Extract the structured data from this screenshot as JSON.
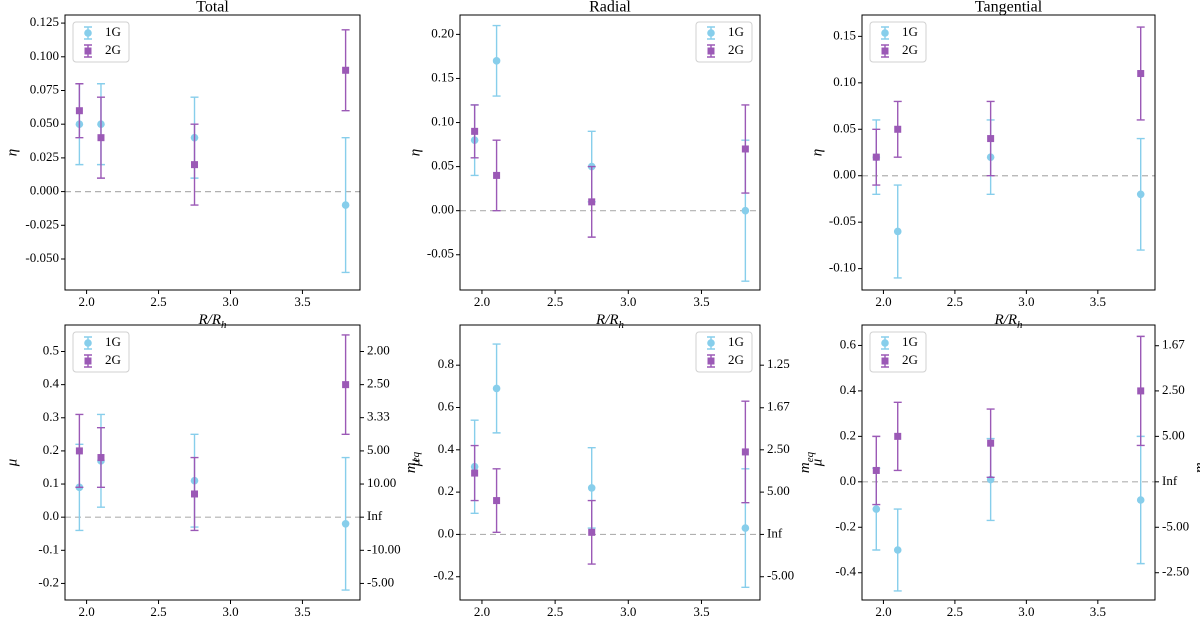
{
  "chart_data": [
    {
      "type": "errorbar",
      "title": "Total",
      "xlabel": "R/R",
      "xlabel_sub": "h",
      "ylabel": "η",
      "x": [
        1.95,
        2.1,
        2.75,
        3.8
      ],
      "xlim": [
        1.85,
        3.9
      ],
      "xticks": [
        {
          "value": 2,
          "label": "2.0"
        },
        2.5,
        {
          "value": 3,
          "label": "3.0"
        },
        3.5
      ],
      "ylim": [
        -0.073,
        0.131
      ],
      "yticks": [
        {
          "value": -0.05,
          "label": "-0.050"
        },
        {
          "value": -0.025,
          "label": "-0.025"
        },
        {
          "value": 0,
          "label": "0.000"
        },
        0.025,
        {
          "value": 0.05,
          "label": "0.050"
        },
        0.075,
        {
          "value": 0.1,
          "label": "0.100"
        },
        0.125
      ],
      "hline": 0,
      "legend": "upper left",
      "series": [
        {
          "name": "1G",
          "color": "#87ceeb",
          "marker": "circle",
          "values": [
            0.05,
            0.05,
            0.04,
            -0.01
          ],
          "errors": [
            0.03,
            0.03,
            0.03,
            0.05
          ]
        },
        {
          "name": "2G",
          "color": "#9b59b6",
          "marker": "square",
          "values": [
            0.06,
            0.04,
            0.02,
            0.09
          ],
          "errors": [
            0.02,
            0.03,
            0.03,
            0.03
          ]
        }
      ]
    },
    {
      "type": "errorbar",
      "title": "Radial",
      "xlabel": "R/R",
      "xlabel_sub": "h",
      "ylabel": "η",
      "x": [
        1.95,
        2.1,
        2.75,
        3.8
      ],
      "xlim": [
        1.85,
        3.9
      ],
      "xticks": [
        {
          "value": 2,
          "label": "2.0"
        },
        2.5,
        {
          "value": 3,
          "label": "3.0"
        },
        3.5
      ],
      "ylim": [
        -0.09,
        0.222
      ],
      "yticks": [
        -0.05,
        {
          "value": 0,
          "label": "0.00"
        },
        0.05,
        {
          "value": 0.1,
          "label": "0.10"
        },
        0.15,
        {
          "value": 0.2,
          "label": "0.20"
        }
      ],
      "hline": 0,
      "legend": "upper right",
      "series": [
        {
          "name": "1G",
          "color": "#87ceeb",
          "marker": "circle",
          "values": [
            0.08,
            0.17,
            0.05,
            0.0
          ],
          "errors": [
            0.04,
            0.04,
            0.04,
            0.08
          ]
        },
        {
          "name": "2G",
          "color": "#9b59b6",
          "marker": "square",
          "values": [
            0.09,
            0.04,
            0.01,
            0.07
          ],
          "errors": [
            0.03,
            0.04,
            0.04,
            0.05
          ]
        }
      ]
    },
    {
      "type": "errorbar",
      "title": "Tangential",
      "xlabel": "R/R",
      "xlabel_sub": "h",
      "ylabel": "η",
      "x": [
        1.95,
        2.1,
        2.75,
        3.8
      ],
      "xlim": [
        1.85,
        3.9
      ],
      "xticks": [
        {
          "value": 2,
          "label": "2.0"
        },
        2.5,
        {
          "value": 3,
          "label": "3.0"
        },
        3.5
      ],
      "ylim": [
        -0.123,
        0.173
      ],
      "yticks": [
        {
          "value": -0.1,
          "label": "-0.10"
        },
        -0.05,
        {
          "value": 0,
          "label": "0.00"
        },
        0.05,
        {
          "value": 0.1,
          "label": "0.10"
        },
        0.15
      ],
      "hline": 0,
      "legend": "upper left",
      "series": [
        {
          "name": "1G",
          "color": "#87ceeb",
          "marker": "circle",
          "values": [
            0.02,
            -0.06,
            0.02,
            -0.02
          ],
          "errors": [
            0.04,
            0.05,
            0.04,
            0.06
          ]
        },
        {
          "name": "2G",
          "color": "#9b59b6",
          "marker": "square",
          "values": [
            0.02,
            0.05,
            0.04,
            0.11
          ],
          "errors": [
            0.03,
            0.03,
            0.04,
            0.05
          ]
        }
      ]
    },
    {
      "type": "errorbar",
      "xlabel": "R/R",
      "xlabel_sub": "h",
      "ylabel": "μ",
      "y2label": "m",
      "y2label_sub": "eq",
      "x": [
        1.95,
        2.1,
        2.75,
        3.8
      ],
      "xlim": [
        1.85,
        3.9
      ],
      "xticks": [
        {
          "value": 2,
          "label": "2.0"
        },
        2.5,
        {
          "value": 3,
          "label": "3.0"
        },
        3.5
      ],
      "ylim": [
        -0.25,
        0.58
      ],
      "yticks": [
        -0.2,
        -0.1,
        {
          "value": 0,
          "label": "0.0"
        },
        0.1,
        0.2,
        0.3,
        0.4,
        0.5
      ],
      "y2_scale": "reciprocal",
      "y2ticks": [
        {
          "value": 2,
          "label": "2.00"
        },
        {
          "value": 2.5,
          "label": "2.50"
        },
        3.33,
        {
          "value": 5,
          "label": "5.00"
        },
        {
          "value": 10,
          "label": "10.00"
        },
        {
          "value": null,
          "label": "Inf"
        },
        {
          "value": -10,
          "label": "-10.00"
        },
        {
          "value": -5,
          "label": "-5.00"
        }
      ],
      "hline": 0,
      "legend": "upper left",
      "series": [
        {
          "name": "1G",
          "color": "#87ceeb",
          "marker": "circle",
          "values": [
            0.09,
            0.17,
            0.11,
            -0.02
          ],
          "errors": [
            0.13,
            0.14,
            0.14,
            0.2
          ]
        },
        {
          "name": "2G",
          "color": "#9b59b6",
          "marker": "square",
          "values": [
            0.2,
            0.18,
            0.07,
            0.4
          ],
          "errors": [
            0.11,
            0.09,
            0.11,
            0.15
          ]
        }
      ]
    },
    {
      "type": "errorbar",
      "xlabel": "R/R",
      "xlabel_sub": "h",
      "ylabel": "μ",
      "y2label": "m",
      "y2label_sub": "eq",
      "x": [
        1.95,
        2.1,
        2.75,
        3.8
      ],
      "xlim": [
        1.85,
        3.9
      ],
      "xticks": [
        {
          "value": 2,
          "label": "2.0"
        },
        2.5,
        {
          "value": 3,
          "label": "3.0"
        },
        3.5
      ],
      "ylim": [
        -0.31,
        0.99
      ],
      "yticks": [
        -0.2,
        {
          "value": 0,
          "label": "0.0"
        },
        0.2,
        0.4,
        0.6,
        0.8
      ],
      "y2_scale": "reciprocal",
      "y2ticks": [
        1.25,
        1.67,
        {
          "value": 2.5,
          "label": "2.50"
        },
        {
          "value": 5,
          "label": "5.00"
        },
        {
          "value": null,
          "label": "Inf"
        },
        {
          "value": -5,
          "label": "-5.00"
        }
      ],
      "hline": 0,
      "legend": "upper right",
      "series": [
        {
          "name": "1G",
          "color": "#87ceeb",
          "marker": "circle",
          "values": [
            0.32,
            0.69,
            0.22,
            0.03
          ],
          "errors": [
            0.22,
            0.21,
            0.19,
            0.28
          ]
        },
        {
          "name": "2G",
          "color": "#9b59b6",
          "marker": "square",
          "values": [
            0.29,
            0.16,
            0.01,
            0.39
          ],
          "errors": [
            0.13,
            0.15,
            0.15,
            0.24
          ]
        }
      ]
    },
    {
      "type": "errorbar",
      "xlabel": "R/R",
      "xlabel_sub": "h",
      "ylabel": "μ",
      "y2label": "m",
      "y2label_sub": "eq",
      "x": [
        1.95,
        2.1,
        2.75,
        3.8
      ],
      "xlim": [
        1.85,
        3.9
      ],
      "xticks": [
        {
          "value": 2,
          "label": "2.0"
        },
        2.5,
        {
          "value": 3,
          "label": "3.0"
        },
        3.5
      ],
      "ylim": [
        -0.52,
        0.69
      ],
      "yticks": [
        -0.4,
        -0.2,
        {
          "value": 0,
          "label": "0.0"
        },
        0.2,
        0.4,
        0.6
      ],
      "y2_scale": "reciprocal",
      "y2ticks": [
        1.67,
        {
          "value": 2.5,
          "label": "2.50"
        },
        {
          "value": 5,
          "label": "5.00"
        },
        {
          "value": null,
          "label": "Inf"
        },
        {
          "value": -5,
          "label": "-5.00"
        },
        {
          "value": -2.5,
          "label": "-2.50"
        }
      ],
      "hline": 0,
      "legend": "upper left",
      "series": [
        {
          "name": "1G",
          "color": "#87ceeb",
          "marker": "circle",
          "values": [
            -0.12,
            -0.3,
            0.01,
            -0.08
          ],
          "errors": [
            0.18,
            0.18,
            0.18,
            0.28
          ]
        },
        {
          "name": "2G",
          "color": "#9b59b6",
          "marker": "square",
          "values": [
            0.05,
            0.2,
            0.17,
            0.4
          ],
          "errors": [
            0.15,
            0.15,
            0.15,
            0.24
          ]
        }
      ]
    }
  ]
}
